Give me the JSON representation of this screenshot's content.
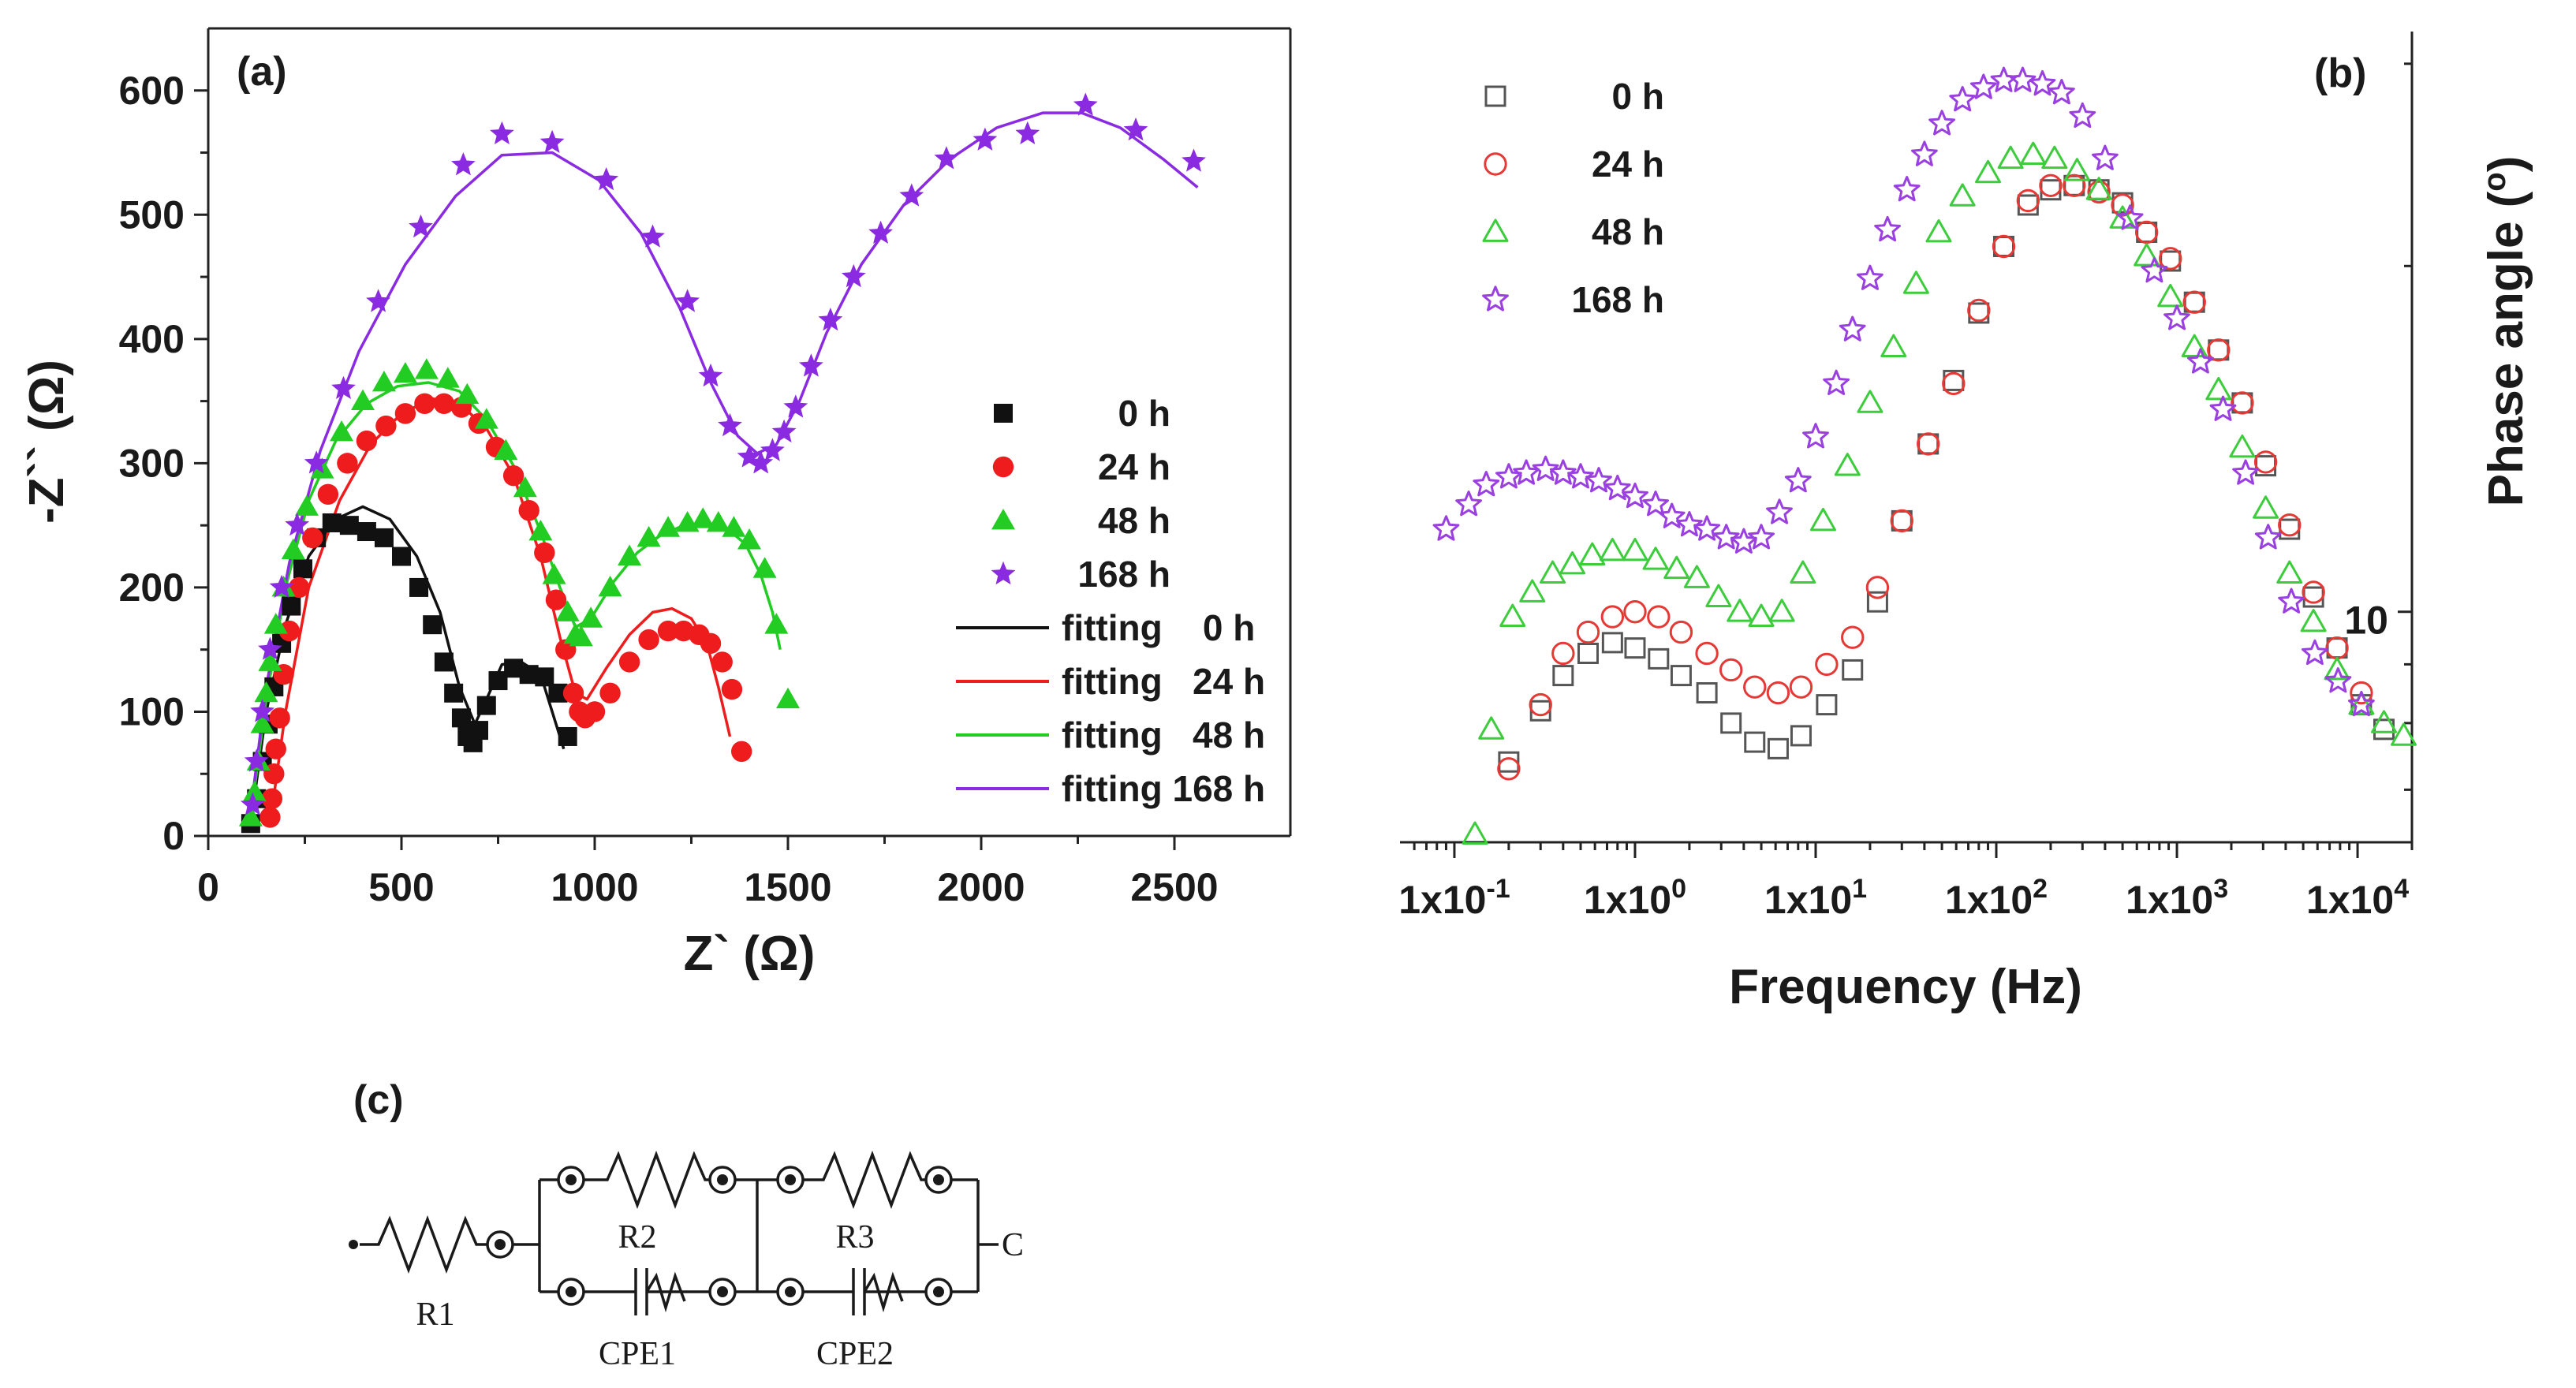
{
  "chart_data": [
    {
      "panel": "(a)",
      "type": "scatter",
      "title": "",
      "xlabel": "Z` (Ω)",
      "ylabel": "-Z`` (Ω)",
      "xlim": [
        0,
        2800
      ],
      "ylim": [
        0,
        650
      ],
      "xticks": [
        0,
        500,
        1000,
        1500,
        2000,
        2500
      ],
      "yticks": [
        0,
        100,
        200,
        300,
        400,
        500,
        600
      ],
      "legend_position": "right",
      "series": [
        {
          "name": "0 h",
          "marker": "square",
          "color": "#111111",
          "x": [
            110,
            125,
            140,
            155,
            170,
            190,
            215,
            245,
            280,
            320,
            365,
            410,
            455,
            500,
            545,
            580,
            610,
            635,
            655,
            670,
            685,
            700,
            720,
            750,
            790,
            830,
            870,
            905,
            930
          ],
          "y": [
            10,
            30,
            60,
            90,
            120,
            155,
            185,
            215,
            240,
            252,
            250,
            245,
            240,
            225,
            200,
            170,
            140,
            115,
            95,
            80,
            75,
            85,
            105,
            125,
            135,
            130,
            128,
            115,
            80
          ]
        },
        {
          "name": "24 h",
          "marker": "circle",
          "color": "#ee1c1c",
          "x": [
            160,
            165,
            170,
            175,
            185,
            195,
            210,
            235,
            270,
            310,
            360,
            410,
            460,
            510,
            560,
            610,
            655,
            700,
            745,
            790,
            830,
            870,
            900,
            925,
            945,
            960,
            975,
            1000,
            1040,
            1090,
            1140,
            1190,
            1230,
            1270,
            1300,
            1330,
            1355,
            1380
          ],
          "y": [
            15,
            30,
            50,
            70,
            95,
            130,
            165,
            200,
            240,
            275,
            300,
            318,
            330,
            340,
            348,
            348,
            345,
            332,
            313,
            290,
            262,
            228,
            190,
            150,
            115,
            100,
            95,
            100,
            115,
            140,
            158,
            165,
            165,
            162,
            155,
            140,
            118,
            68
          ]
        },
        {
          "name": "48 h",
          "marker": "triangle",
          "color": "#22cc22",
          "x": [
            110,
            120,
            130,
            140,
            150,
            160,
            175,
            195,
            220,
            255,
            295,
            345,
            400,
            455,
            510,
            565,
            620,
            670,
            720,
            770,
            820,
            860,
            895,
            930,
            950,
            965,
            990,
            1040,
            1090,
            1140,
            1190,
            1240,
            1280,
            1320,
            1360,
            1400,
            1440,
            1470,
            1500
          ],
          "y": [
            15,
            35,
            60,
            90,
            115,
            140,
            170,
            200,
            230,
            265,
            295,
            325,
            350,
            365,
            372,
            375,
            368,
            355,
            335,
            310,
            280,
            245,
            210,
            180,
            162,
            160,
            175,
            200,
            225,
            240,
            248,
            252,
            255,
            252,
            248,
            238,
            215,
            170,
            110
          ]
        },
        {
          "name": "168 h",
          "marker": "star",
          "color": "#8a2be2",
          "x": [
            115,
            125,
            140,
            160,
            190,
            230,
            280,
            350,
            440,
            550,
            660,
            760,
            890,
            1030,
            1150,
            1240,
            1300,
            1350,
            1400,
            1430,
            1460,
            1490,
            1520,
            1560,
            1610,
            1670,
            1740,
            1820,
            1910,
            2010,
            2120,
            2270,
            2400,
            2550
          ],
          "y": [
            25,
            60,
            100,
            150,
            200,
            250,
            300,
            360,
            430,
            490,
            540,
            565,
            558,
            528,
            482,
            430,
            370,
            330,
            305,
            300,
            310,
            325,
            345,
            378,
            415,
            450,
            485,
            515,
            545,
            560,
            565,
            588,
            568,
            543
          ]
        },
        {
          "name": "fitting 0 h",
          "marker": "none",
          "line": "solid",
          "color": "#111111",
          "x": [
            110,
            150,
            200,
            260,
            330,
            400,
            470,
            540,
            600,
            650,
            690,
            720,
            760,
            810,
            860,
            900,
            920
          ],
          "y": [
            10,
            100,
            170,
            225,
            255,
            265,
            255,
            225,
            180,
            120,
            90,
            110,
            138,
            140,
            130,
            90,
            70
          ]
        },
        {
          "name": "fitting 24 h",
          "marker": "none",
          "line": "solid",
          "color": "#ee1c1c",
          "x": [
            160,
            200,
            260,
            340,
            420,
            500,
            580,
            650,
            720,
            790,
            860,
            910,
            950,
            980,
            1030,
            1090,
            1150,
            1200,
            1250,
            1290,
            1320,
            1350
          ],
          "y": [
            10,
            100,
            200,
            270,
            315,
            340,
            352,
            348,
            328,
            290,
            225,
            160,
            115,
            110,
            135,
            162,
            180,
            183,
            175,
            155,
            120,
            80
          ]
        },
        {
          "name": "fitting 48 h",
          "marker": "none",
          "line": "solid",
          "color": "#22cc22",
          "x": [
            110,
            150,
            200,
            260,
            330,
            410,
            490,
            570,
            650,
            720,
            790,
            860,
            910,
            950,
            990,
            1050,
            1110,
            1170,
            1230,
            1290,
            1340,
            1390,
            1430,
            1460,
            1480
          ],
          "y": [
            15,
            110,
            200,
            270,
            318,
            348,
            362,
            365,
            358,
            335,
            298,
            245,
            200,
            168,
            175,
            205,
            228,
            242,
            250,
            252,
            248,
            235,
            210,
            180,
            150
          ]
        },
        {
          "name": "fitting 168 h",
          "marker": "none",
          "line": "solid",
          "color": "#8a2be2",
          "x": [
            110,
            150,
            210,
            290,
            390,
            510,
            640,
            760,
            890,
            1010,
            1120,
            1220,
            1300,
            1370,
            1420,
            1470,
            1530,
            1600,
            1690,
            1800,
            1920,
            2040,
            2160,
            2260,
            2360,
            2470,
            2560
          ],
          "y": [
            20,
            120,
            220,
            310,
            390,
            460,
            515,
            548,
            550,
            528,
            485,
            425,
            365,
            322,
            308,
            315,
            350,
            405,
            460,
            508,
            545,
            570,
            582,
            582,
            570,
            545,
            522
          ]
        }
      ]
    },
    {
      "panel": "(b)",
      "type": "scatter",
      "title": "",
      "xlabel": "Frequency (Hz)",
      "ylabel": "Phase angle (o)",
      "xscale": "log",
      "yscale": "log",
      "xlim": [
        0.05,
        20000
      ],
      "ylim": [
        6.3,
        32
      ],
      "xticks": [
        0.1,
        1,
        10,
        100,
        1000,
        10000
      ],
      "xtick_labels": [
        "1x10-1",
        "1x100",
        "1x101",
        "1x102",
        "1x103",
        "1x104"
      ],
      "yticks": [
        10
      ],
      "ytick_labels": [
        "10"
      ],
      "legend_position": "top-left",
      "series": [
        {
          "name": "0 h",
          "marker": "open-square",
          "color": "#555555",
          "x": [
            0.2,
            0.3,
            0.4,
            0.55,
            0.75,
            1,
            1.35,
            1.8,
            2.5,
            3.4,
            4.6,
            6.2,
            8.3,
            11.5,
            16,
            22,
            30,
            42,
            58,
            80,
            110,
            150,
            200,
            270,
            370,
            500,
            680,
            920,
            1250,
            1700,
            2300,
            3100,
            4200,
            5700,
            7700,
            10500,
            14000
          ],
          "y": [
            7.4,
            8.2,
            8.8,
            9.2,
            9.4,
            9.3,
            9.1,
            8.8,
            8.5,
            8.0,
            7.7,
            7.6,
            7.8,
            8.3,
            8.9,
            10.2,
            12.0,
            14.0,
            15.9,
            18.2,
            20.8,
            22.6,
            23.3,
            23.5,
            23.3,
            22.7,
            21.4,
            20.2,
            18.6,
            16.9,
            15.2,
            13.4,
            11.8,
            10.3,
            9.3,
            8.3,
            7.9
          ]
        },
        {
          "name": "24 h",
          "marker": "open-circle",
          "color": "#e53935",
          "x": [
            0.2,
            0.3,
            0.4,
            0.55,
            0.75,
            1,
            1.35,
            1.8,
            2.5,
            3.4,
            4.6,
            6.2,
            8.3,
            11.5,
            16,
            22,
            30,
            42,
            58,
            80,
            110,
            150,
            200,
            270,
            370,
            500,
            680,
            920,
            1250,
            1700,
            2300,
            3100,
            4200,
            5700,
            7700,
            10500
          ],
          "y": [
            7.3,
            8.3,
            9.2,
            9.6,
            9.9,
            10.0,
            9.9,
            9.6,
            9.2,
            8.9,
            8.6,
            8.5,
            8.6,
            9.0,
            9.5,
            10.5,
            12.0,
            14.0,
            15.8,
            18.3,
            20.8,
            22.8,
            23.5,
            23.5,
            23.2,
            22.6,
            21.4,
            20.3,
            18.6,
            16.9,
            15.2,
            13.5,
            11.9,
            10.4,
            9.3,
            8.5
          ]
        },
        {
          "name": "48 h",
          "marker": "open-triangle",
          "color": "#3ccc3c",
          "x": [
            0.13,
            0.16,
            0.21,
            0.27,
            0.35,
            0.45,
            0.58,
            0.75,
            1,
            1.3,
            1.7,
            2.2,
            2.9,
            3.8,
            5,
            6.5,
            8.5,
            11,
            15,
            20,
            27,
            36,
            48,
            65,
            90,
            120,
            160,
            210,
            280,
            370,
            500,
            680,
            920,
            1250,
            1700,
            2300,
            3100,
            4200,
            5700,
            7700,
            10500,
            14000,
            18000
          ],
          "y": [
            6.4,
            7.9,
            9.9,
            10.4,
            10.8,
            11.0,
            11.2,
            11.3,
            11.3,
            11.1,
            10.9,
            10.7,
            10.3,
            10.0,
            9.9,
            10.0,
            10.8,
            12.0,
            13.4,
            15.2,
            17.0,
            19.3,
            21.4,
            23.0,
            24.1,
            24.8,
            25.0,
            24.8,
            24.2,
            23.3,
            22.0,
            20.4,
            18.8,
            17.0,
            15.6,
            13.9,
            12.3,
            10.8,
            9.8,
            8.9,
            8.3,
            8.0,
            7.8
          ]
        },
        {
          "name": "168 h",
          "marker": "open-star",
          "color": "#9a3fe0",
          "x": [
            0.09,
            0.12,
            0.15,
            0.2,
            0.25,
            0.32,
            0.4,
            0.5,
            0.63,
            0.8,
            1,
            1.3,
            1.6,
            2,
            2.5,
            3.2,
            4,
            5,
            6.3,
            8,
            10,
            13,
            16,
            20,
            25,
            32,
            40,
            50,
            65,
            85,
            110,
            140,
            180,
            230,
            300,
            400,
            550,
            750,
            1000,
            1350,
            1800,
            2400,
            3200,
            4300,
            5800,
            7800,
            10500
          ],
          "y": [
            11.8,
            12.4,
            12.9,
            13.1,
            13.2,
            13.3,
            13.2,
            13.1,
            13.0,
            12.8,
            12.6,
            12.4,
            12.1,
            11.9,
            11.8,
            11.6,
            11.5,
            11.6,
            12.2,
            13.0,
            14.2,
            15.8,
            17.6,
            19.5,
            21.5,
            23.3,
            25.0,
            26.6,
            27.9,
            28.6,
            29.0,
            29.0,
            28.8,
            28.3,
            27.0,
            24.8,
            22.0,
            19.8,
            18.0,
            16.5,
            15.0,
            13.2,
            11.6,
            10.2,
            9.2,
            8.7,
            8.3
          ]
        }
      ]
    }
  ],
  "panel_a": {
    "label": "(a)",
    "xlabel": "Z` (Ω)",
    "ylabel": "-Z`` (Ω)",
    "xtick_labels": [
      "0",
      "500",
      "1000",
      "1500",
      "2000",
      "2500"
    ],
    "ytick_labels": [
      "0",
      "100",
      "200",
      "300",
      "400",
      "500",
      "600"
    ],
    "legend": [
      {
        "marker": "square",
        "label": "0 h"
      },
      {
        "marker": "circle",
        "label": "24 h"
      },
      {
        "marker": "triangle",
        "label": "48 h"
      },
      {
        "marker": "star",
        "label": "168 h"
      },
      {
        "line": true,
        "label": "fitting    0 h"
      },
      {
        "line": true,
        "label": "fitting   24 h"
      },
      {
        "line": true,
        "label": "fitting   48 h"
      },
      {
        "line": true,
        "label": "fitting 168 h"
      }
    ]
  },
  "panel_b": {
    "label": "(b)",
    "xlabel": "Frequency (Hz)",
    "ylabel": "Phase angle (",
    "ylabel_superscript": "o",
    "ylabel_end": ")",
    "ytick_label": "10",
    "xtick_mantissa": "1x10",
    "xtick_exponents": [
      "-1",
      "0",
      "1",
      "2",
      "3",
      "4"
    ],
    "legend": [
      {
        "label": "0 h"
      },
      {
        "label": "24 h"
      },
      {
        "label": "48 h"
      },
      {
        "label": "168 h"
      }
    ]
  },
  "panel_c": {
    "label": "(c)",
    "components": {
      "r1": "R1",
      "r2": "R2",
      "r3": "R3",
      "cpe1": "CPE1",
      "cpe2": "CPE2",
      "terminal_end": "C"
    }
  },
  "colors": {
    "black": "#111111",
    "red": "#ee1c1c",
    "green": "#22cc22",
    "purple": "#8a2be2",
    "gray_b": "#555555",
    "red_b": "#e53935",
    "green_b": "#3ccc3c",
    "purple_b": "#9a3fe0"
  }
}
